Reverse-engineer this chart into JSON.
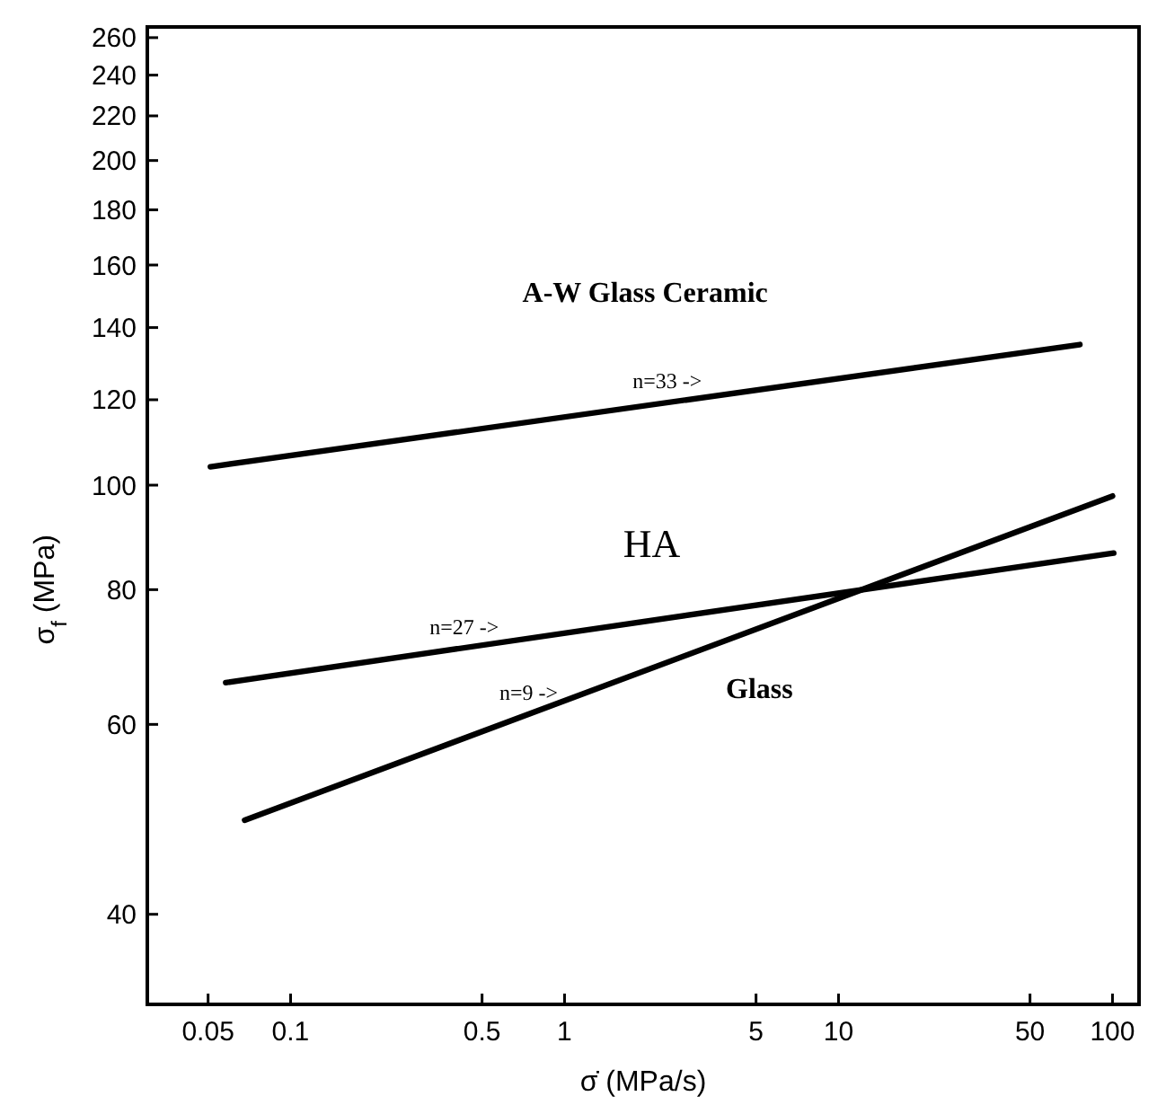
{
  "chart_data": {
    "type": "line",
    "xlabel": "σ̇ (MPa/s)",
    "ylabel": "σ$_{f}$ (MPa)",
    "log": "xy",
    "xlim": [
      0.03,
      125
    ],
    "ylim": [
      33,
      266
    ],
    "xticks": [
      0.05,
      0.1,
      0.5,
      1,
      5,
      10,
      50,
      100
    ],
    "yticks": [
      40,
      60,
      80,
      100,
      120,
      140,
      160,
      180,
      200,
      220,
      240,
      260
    ],
    "grid": false,
    "marker": "none",
    "line_style": "solid",
    "series": [
      {
        "name": "A-W Glass Ceramic",
        "color": "#000000",
        "x": [
          0.051,
          76
        ],
        "values": [
          104,
          135
        ]
      },
      {
        "name": "HA",
        "color": "#000000",
        "x": [
          0.058,
          101
        ],
        "values": [
          65.6,
          86.5
        ]
      },
      {
        "name": "Glass",
        "color": "#000000",
        "x": [
          0.068,
          100
        ],
        "values": [
          48.9,
          97.7
        ]
      }
    ],
    "annotations": [
      {
        "text": "n=33 ->",
        "x": 2.37,
        "y": 119.3
      },
      {
        "text": "n=27 ->",
        "x": 0.43,
        "y": 70.6
      },
      {
        "text": "n=9 ->",
        "x": 0.74,
        "y": 61.3
      }
    ]
  }
}
